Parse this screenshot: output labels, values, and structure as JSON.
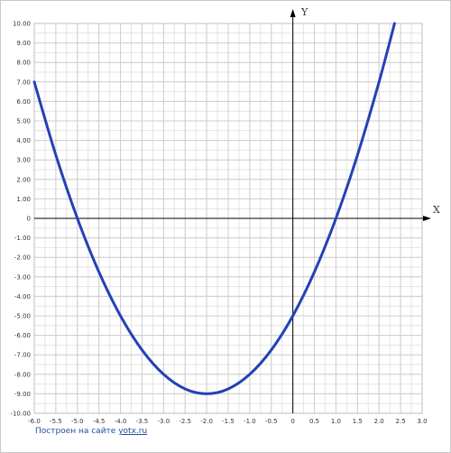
{
  "chart_data": {
    "type": "line",
    "title": "",
    "xlabel": "X",
    "ylabel": "Y",
    "xlim": [
      -6.0,
      3.0
    ],
    "ylim": [
      -10.0,
      10.0
    ],
    "grid": true,
    "x_ticks": [
      "-6.0",
      "-5.5",
      "-5.0",
      "-4.5",
      "-4.0",
      "-3.5",
      "-3.0",
      "-2.5",
      "-2.0",
      "-1.5",
      "-1.0",
      "-0.5",
      "0",
      "0.5",
      "1.0",
      "1.5",
      "2.0",
      "2.5",
      "3.0"
    ],
    "y_ticks": [
      "10.00",
      "9.00",
      "8.00",
      "7.00",
      "6.00",
      "5.00",
      "4.00",
      "3.00",
      "2.00",
      "1.00",
      "0",
      "-1.00",
      "-2.00",
      "-3.00",
      "-4.00",
      "-5.00",
      "-6.00",
      "-7.00",
      "-8.00",
      "-9.00",
      "-10.00"
    ],
    "series": [
      {
        "color": "#2441b5",
        "x": [
          -6.0,
          -5.5,
          -5.0,
          -4.5,
          -4.0,
          -3.5,
          -3.0,
          -2.5,
          -2.0,
          -1.5,
          -1.0,
          -0.5,
          0.0,
          0.5,
          1.0,
          1.5,
          2.0,
          2.36
        ],
        "y": [
          7.0,
          3.25,
          0.0,
          -2.75,
          -5.0,
          -6.75,
          -8.0,
          -8.75,
          -9.0,
          -8.75,
          -8.0,
          -6.75,
          -5.0,
          -2.75,
          0.0,
          3.25,
          7.0,
          10.0
        ]
      }
    ]
  },
  "credit": {
    "text": "Построен на сайте",
    "link": "yotx.ru"
  }
}
